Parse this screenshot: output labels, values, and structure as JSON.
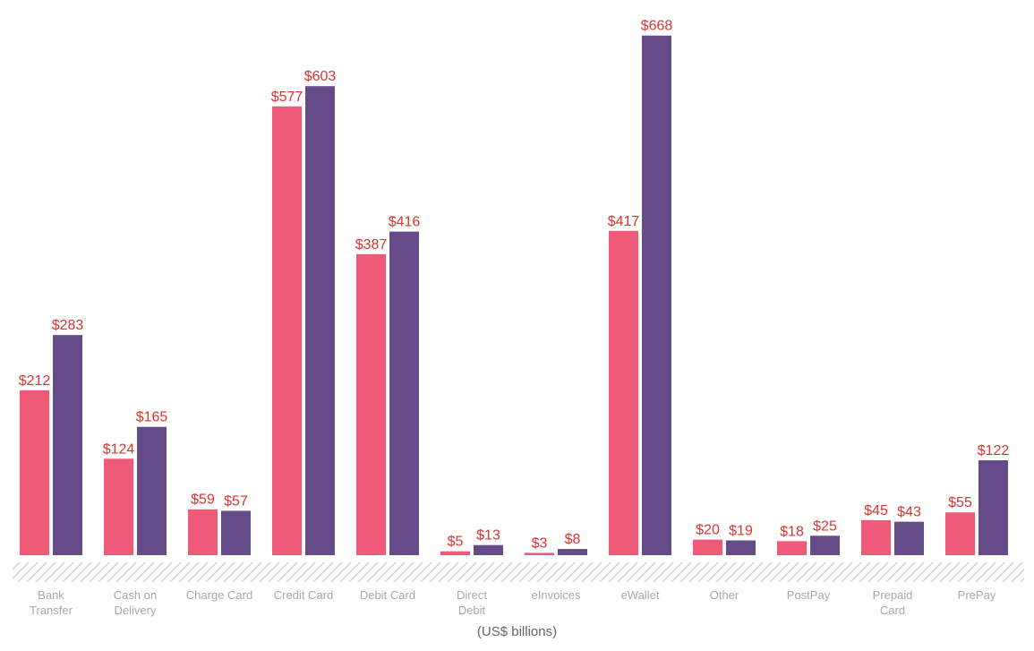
{
  "chart_data": {
    "type": "bar",
    "categories": [
      [
        "Bank",
        "Transfer"
      ],
      [
        "Cash on",
        "Delivery"
      ],
      [
        "Charge Card"
      ],
      [
        "Credit Card"
      ],
      [
        "Debit Card"
      ],
      [
        "Direct",
        "Debit"
      ],
      [
        "eInvoices"
      ],
      [
        "eWallet"
      ],
      [
        "Other"
      ],
      [
        "PostPay"
      ],
      [
        "Prepaid",
        "Card"
      ],
      [
        "PrePay"
      ]
    ],
    "series": [
      {
        "color": "#ee5a78",
        "values": [
          212,
          124,
          59,
          577,
          387,
          5,
          3,
          417,
          20,
          18,
          45,
          55
        ],
        "labels": [
          "$212",
          "$124",
          "$59",
          "$577",
          "$387",
          "$5",
          "$3",
          "$417",
          "$20",
          "$18",
          "$45",
          "$55"
        ]
      },
      {
        "color": "#654b87",
        "values": [
          283,
          165,
          57,
          603,
          416,
          13,
          8,
          668,
          19,
          25,
          43,
          122
        ],
        "labels": [
          "$283",
          "$165",
          "$57",
          "$603",
          "$416",
          "$13",
          "$8",
          "$668",
          "$19",
          "$25",
          "$43",
          "$122"
        ]
      }
    ],
    "ylim": [
      0,
      700
    ],
    "unit_label": "(US$ billions)",
    "label_color": "#d8352f",
    "category_color": "#a9a9a9",
    "grid": false
  }
}
